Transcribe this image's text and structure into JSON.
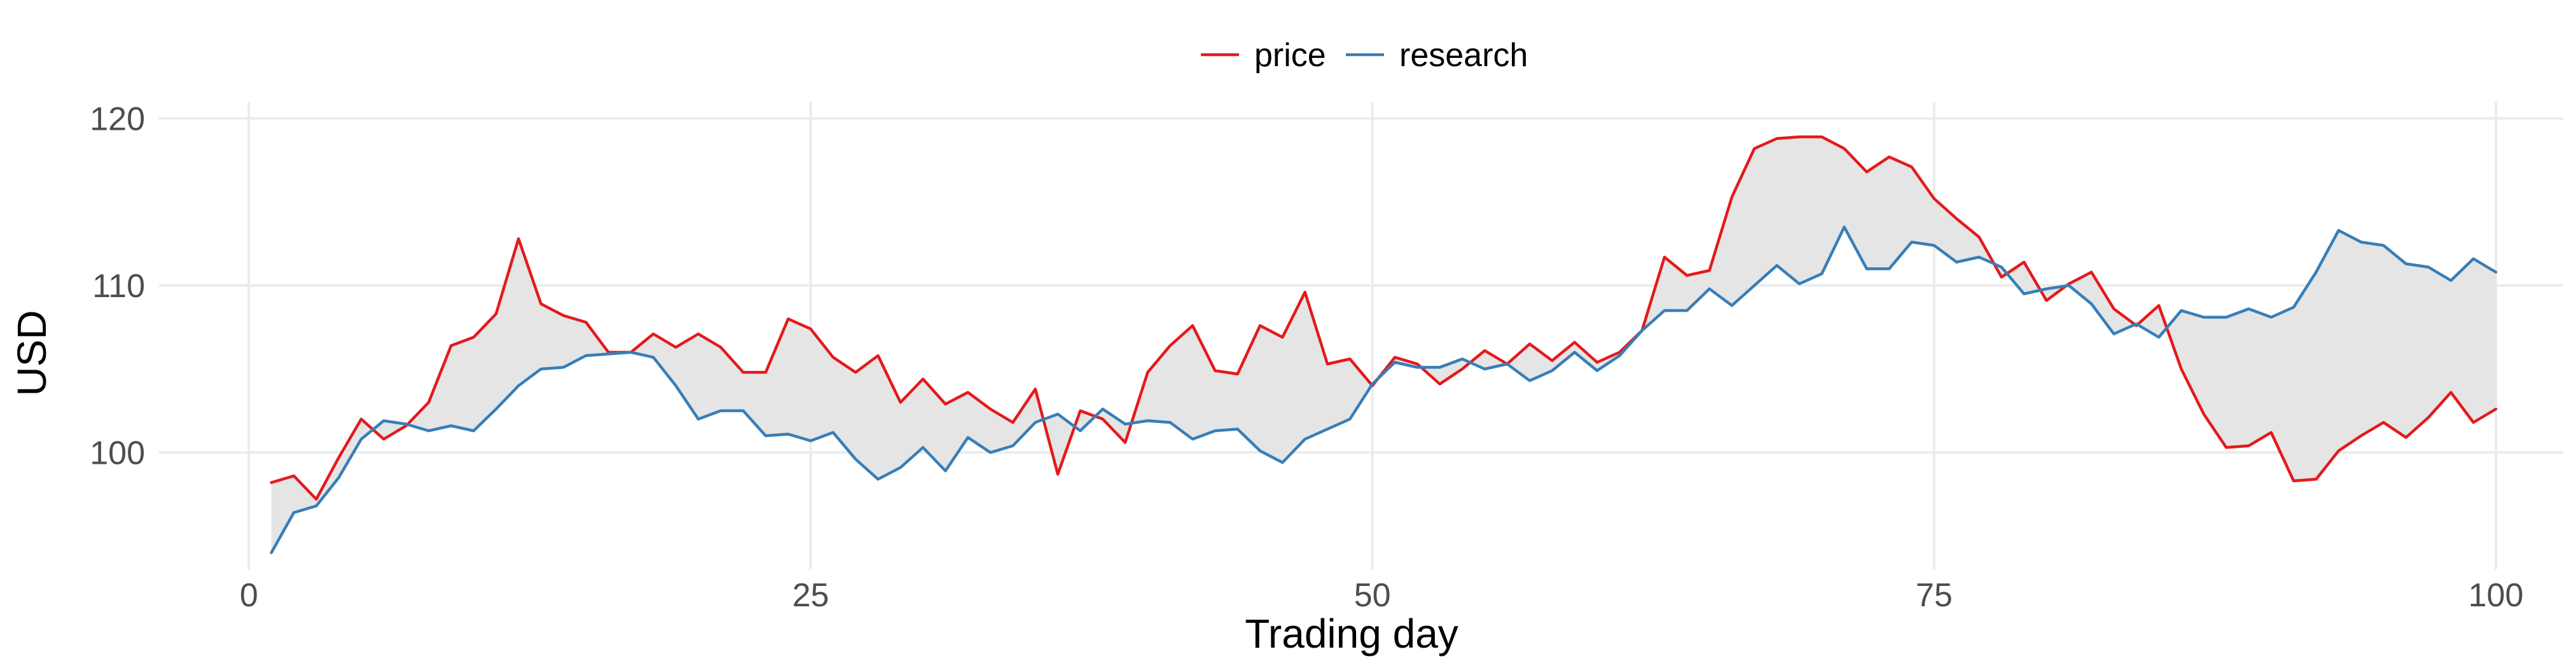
{
  "chart_data": {
    "type": "line",
    "title": "",
    "xlabel": "Trading day",
    "ylabel": "USD",
    "xlim": [
      -4,
      103
    ],
    "ylim": [
      93,
      121
    ],
    "x_ticks": [
      0,
      25,
      50,
      75,
      100
    ],
    "y_ticks": [
      100,
      110,
      120
    ],
    "grid": true,
    "legend_position": "top",
    "ribbon_between_series": true,
    "colors": {
      "price": "#e41a1c",
      "research": "#377eb8",
      "ribbon": "#e5e5e5"
    },
    "x": [
      1,
      2,
      3,
      4,
      5,
      6,
      7,
      8,
      9,
      10,
      11,
      12,
      13,
      14,
      15,
      16,
      17,
      18,
      19,
      20,
      21,
      22,
      23,
      24,
      25,
      26,
      27,
      28,
      29,
      30,
      31,
      32,
      33,
      34,
      35,
      36,
      37,
      38,
      39,
      40,
      41,
      42,
      43,
      44,
      45,
      46,
      47,
      48,
      49,
      50,
      51,
      52,
      53,
      54,
      55,
      56,
      57,
      58,
      59,
      60,
      61,
      62,
      63,
      64,
      65,
      66,
      67,
      68,
      69,
      70,
      71,
      72,
      73,
      74,
      75,
      76,
      77,
      78,
      79,
      80,
      81,
      82,
      83,
      84,
      85,
      86,
      87,
      88,
      89,
      90,
      91,
      92,
      93,
      94,
      95,
      96,
      97,
      98,
      99,
      100
    ],
    "series": [
      {
        "name": "price",
        "values": [
          98.2,
          98.6,
          97.2,
          99.7,
          102.0,
          100.8,
          101.6,
          103.0,
          106.4,
          106.9,
          108.3,
          112.8,
          108.9,
          108.2,
          107.8,
          106.0,
          106.0,
          107.1,
          106.3,
          107.1,
          106.3,
          104.8,
          104.8,
          108.0,
          107.4,
          105.7,
          104.8,
          105.8,
          103.0,
          104.4,
          102.9,
          103.6,
          102.6,
          101.8,
          103.8,
          98.7,
          102.5,
          102.0,
          100.6,
          104.8,
          106.4,
          107.6,
          104.9,
          104.7,
          107.6,
          106.9,
          109.6,
          105.3,
          105.6,
          104.0,
          105.7,
          105.3,
          104.1,
          105.0,
          106.1,
          105.3,
          106.5,
          105.5,
          106.6,
          105.4,
          106.0,
          107.3,
          111.7,
          110.6,
          110.9,
          115.3,
          118.2,
          118.8,
          118.9,
          118.9,
          118.2,
          116.8,
          117.7,
          117.1,
          115.2,
          114.0,
          112.9,
          110.5,
          111.4,
          109.1,
          110.1,
          110.8,
          108.6,
          107.6,
          108.8,
          105.0,
          102.3,
          100.3,
          100.4,
          101.2,
          98.3,
          98.4,
          100.1,
          101.0,
          101.8,
          100.9,
          102.1,
          103.6,
          101.8,
          102.6
        ]
      },
      {
        "name": "research",
        "values": [
          94.0,
          96.4,
          96.8,
          98.5,
          100.8,
          101.9,
          101.7,
          101.3,
          101.6,
          101.3,
          102.6,
          104.0,
          105.0,
          105.1,
          105.8,
          105.9,
          106.0,
          105.7,
          104.0,
          102.0,
          102.5,
          102.5,
          101.0,
          101.1,
          100.7,
          101.2,
          99.6,
          98.4,
          99.1,
          100.3,
          98.9,
          100.9,
          100.0,
          100.4,
          101.8,
          102.3,
          101.3,
          102.6,
          101.7,
          101.9,
          101.8,
          100.8,
          101.3,
          101.4,
          100.1,
          99.4,
          100.8,
          101.4,
          102.0,
          104.1,
          105.4,
          105.1,
          105.1,
          105.6,
          105.0,
          105.3,
          104.3,
          104.9,
          106.0,
          104.9,
          105.8,
          107.3,
          108.5,
          108.5,
          109.8,
          108.8,
          110.0,
          111.2,
          110.1,
          110.7,
          113.5,
          111.0,
          111.0,
          112.6,
          112.4,
          111.4,
          111.7,
          111.1,
          109.5,
          109.8,
          110.0,
          108.9,
          107.1,
          107.7,
          106.9,
          108.5,
          108.1,
          108.1,
          108.6,
          108.1,
          108.7,
          110.8,
          113.3,
          112.6,
          112.4,
          111.3,
          111.1,
          110.3,
          111.6,
          110.8
        ]
      }
    ]
  }
}
